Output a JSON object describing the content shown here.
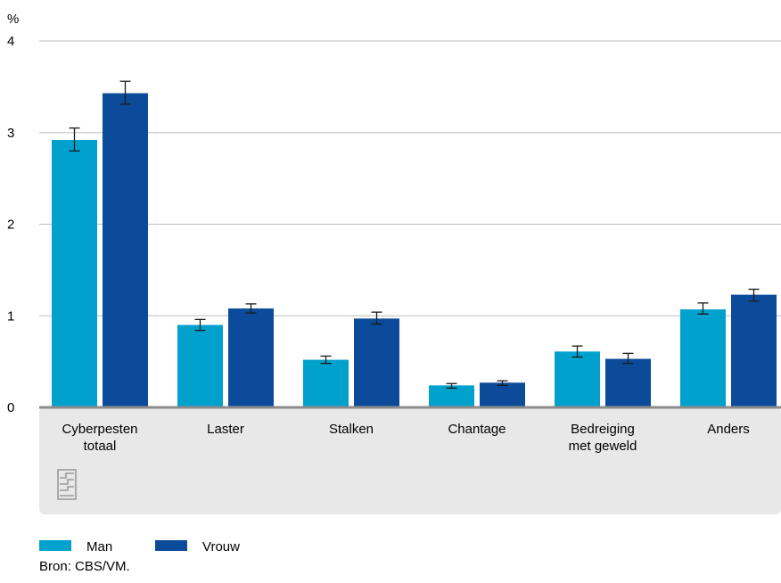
{
  "colors": {
    "man": "#00a1cd",
    "vrouw": "#0b4b9a",
    "axis_band": "#e8e8e8",
    "grid": "#bdbdbd",
    "baseline": "#8c8c8c",
    "error_bar": "#1a1a1a"
  },
  "logo": {
    "name": "cbs-logo",
    "text": "cbs"
  },
  "source": "Bron: CBS/VM.",
  "chart_data": {
    "type": "bar",
    "ylabel": "%",
    "ylim": [
      0,
      4
    ],
    "yticks": [
      "0",
      "1",
      "2",
      "3",
      "4"
    ],
    "grid": true,
    "legend_position": "bottom-left",
    "categories": [
      [
        "Cyberpesten",
        "totaal"
      ],
      [
        "Laster"
      ],
      [
        "Stalken"
      ],
      [
        "Chantage"
      ],
      [
        "Bedreiging",
        "met geweld"
      ],
      [
        "Anders"
      ]
    ],
    "series": [
      {
        "name": "Man",
        "color_key": "man",
        "values": [
          2.92,
          0.9,
          0.52,
          0.24,
          0.61,
          1.07
        ],
        "err_low": [
          2.8,
          0.84,
          0.48,
          0.21,
          0.55,
          1.02
        ],
        "err_high": [
          3.05,
          0.96,
          0.56,
          0.26,
          0.67,
          1.14
        ]
      },
      {
        "name": "Vrouw",
        "color_key": "vrouw",
        "values": [
          3.43,
          1.08,
          0.97,
          0.27,
          0.53,
          1.23
        ],
        "err_low": [
          3.31,
          1.03,
          0.91,
          0.24,
          0.48,
          1.16
        ],
        "err_high": [
          3.56,
          1.13,
          1.04,
          0.29,
          0.59,
          1.29
        ]
      }
    ]
  }
}
